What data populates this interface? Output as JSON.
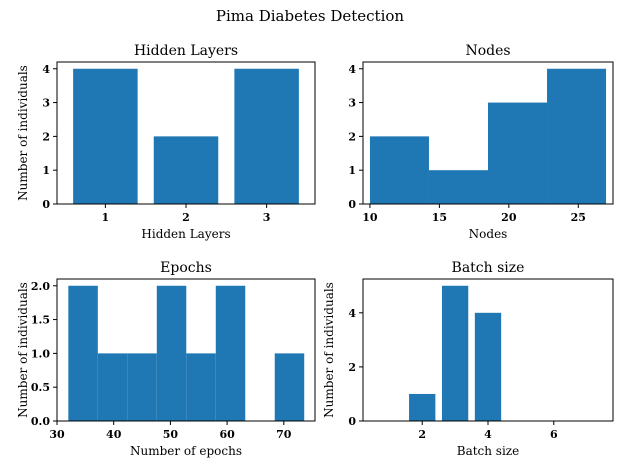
{
  "figure": {
    "title": "Pima Diabetes Detection"
  },
  "colors": {
    "bar": "#1f77b4",
    "axis": "#000000"
  },
  "chart_data": [
    {
      "type": "bar",
      "title": "Hidden Layers",
      "xlabel": "Hidden Layers",
      "ylabel": "Number of individuals",
      "xlim": [
        0.4,
        3.6
      ],
      "ylim": [
        0,
        4.2
      ],
      "xticks": [
        1,
        2,
        3
      ],
      "yticks": [
        0,
        1,
        2,
        3,
        4
      ],
      "ytick_labels": [
        "0",
        "1",
        "2",
        "3",
        "4"
      ],
      "bars": [
        {
          "x0": 0.6,
          "x1": 1.4,
          "value": 4
        },
        {
          "x0": 1.6,
          "x1": 2.4,
          "value": 2
        },
        {
          "x0": 2.6,
          "x1": 3.4,
          "value": 4
        }
      ]
    },
    {
      "type": "bar",
      "title": "Nodes",
      "xlabel": "Nodes",
      "ylabel": "",
      "xlim": [
        9.5,
        27.5
      ],
      "ylim": [
        0,
        4.2
      ],
      "xticks": [
        10,
        15,
        20,
        25
      ],
      "yticks": [
        0,
        1,
        2,
        3,
        4
      ],
      "ytick_labels": [
        "0",
        "1",
        "2",
        "3",
        "4"
      ],
      "bars": [
        {
          "x0": 10,
          "x1": 14.25,
          "value": 2
        },
        {
          "x0": 14.25,
          "x1": 18.5,
          "value": 1
        },
        {
          "x0": 18.5,
          "x1": 22.75,
          "value": 3
        },
        {
          "x0": 22.75,
          "x1": 27,
          "value": 4
        }
      ]
    },
    {
      "type": "bar",
      "title": "Epochs",
      "xlabel": "Number of epochs",
      "ylabel": "Number of individuals",
      "xlim": [
        30,
        75.5
      ],
      "ylim": [
        0,
        2.1
      ],
      "xticks": [
        30,
        40,
        50,
        60,
        70
      ],
      "yticks": [
        0,
        0.5,
        1,
        1.5,
        2
      ],
      "ytick_labels": [
        "0.0",
        "0.5",
        "1.0",
        "1.5",
        "2.0"
      ],
      "bars": [
        {
          "x0": 32,
          "x1": 37.2,
          "value": 2
        },
        {
          "x0": 37.2,
          "x1": 42.4,
          "value": 1
        },
        {
          "x0": 42.4,
          "x1": 47.6,
          "value": 1
        },
        {
          "x0": 47.6,
          "x1": 52.8,
          "value": 2
        },
        {
          "x0": 52.8,
          "x1": 58,
          "value": 1
        },
        {
          "x0": 58,
          "x1": 63.2,
          "value": 2
        },
        {
          "x0": 68.4,
          "x1": 73.6,
          "value": 1
        }
      ]
    },
    {
      "type": "bar",
      "title": "Batch size",
      "xlabel": "Batch size",
      "ylabel": "Number of individuals",
      "xlim": [
        0.2,
        7.8
      ],
      "ylim": [
        0,
        5.25
      ],
      "xticks": [
        2,
        4,
        6
      ],
      "yticks": [
        0,
        2,
        4
      ],
      "ytick_labels": [
        "0",
        "2",
        "4"
      ],
      "bars": [
        {
          "x0": 1.6,
          "x1": 2.4,
          "value": 1
        },
        {
          "x0": 2.6,
          "x1": 3.4,
          "value": 5
        },
        {
          "x0": 3.6,
          "x1": 4.4,
          "value": 4
        }
      ]
    }
  ]
}
